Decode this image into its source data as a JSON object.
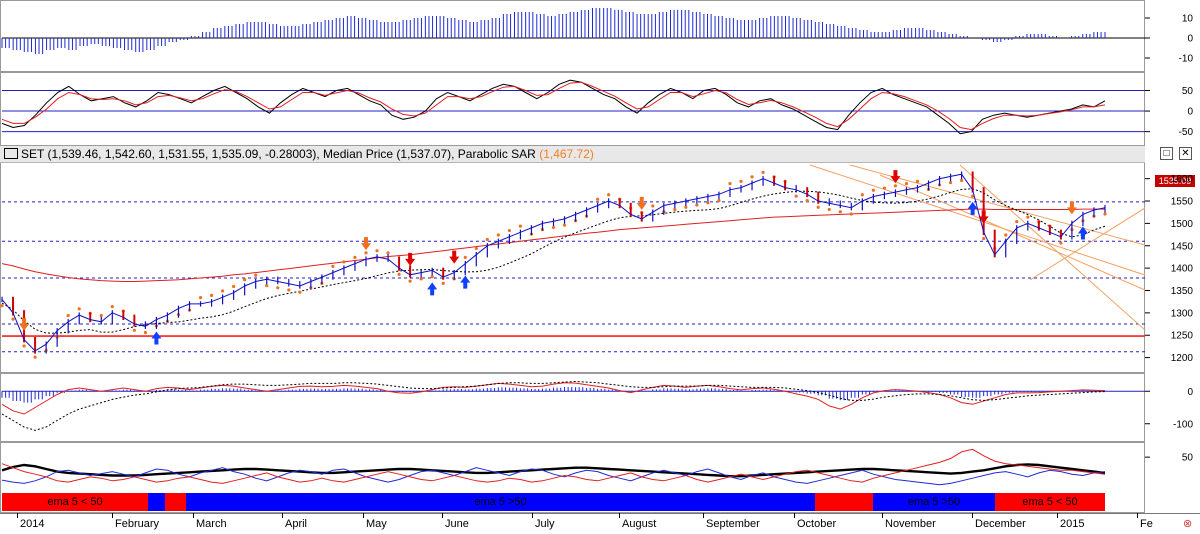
{
  "chart_data": [
    {
      "type": "bar",
      "indicator_id": "histogram-top",
      "yticks": [
        10,
        0,
        -10
      ],
      "ylim": [
        -16,
        18
      ],
      "colors": {
        "bars": "#1f2ad6",
        "zero": "#000000"
      },
      "values": [
        -5,
        -6,
        -7,
        -8,
        -6,
        -5,
        -6,
        -4,
        -3,
        -4,
        -5,
        -6,
        -7,
        -6,
        -4,
        -2,
        -1,
        1,
        3,
        5,
        6,
        7,
        8,
        8,
        7,
        6,
        6,
        7,
        8,
        9,
        10,
        11,
        10,
        9,
        8,
        8,
        9,
        10,
        11,
        11,
        10,
        9,
        8,
        9,
        10,
        12,
        13,
        13,
        12,
        11,
        12,
        13,
        14,
        15,
        15,
        14,
        13,
        12,
        12,
        13,
        14,
        14,
        13,
        12,
        11,
        10,
        9,
        9,
        10,
        11,
        11,
        10,
        9,
        8,
        7,
        6,
        5,
        4,
        3,
        3,
        4,
        5,
        5,
        4,
        3,
        2,
        1,
        0,
        -1,
        -2,
        -1,
        1,
        2,
        2,
        1,
        0,
        1,
        2,
        3,
        3
      ]
    },
    {
      "type": "line",
      "indicator_id": "oscillator",
      "yticks": [
        50,
        0,
        -50
      ],
      "ylim": [
        -80,
        90
      ],
      "hlines": [
        50,
        0,
        -50
      ],
      "series": [
        {
          "color": "#000000",
          "values": [
            -30,
            -40,
            -35,
            -10,
            20,
            45,
            60,
            40,
            25,
            30,
            35,
            20,
            10,
            25,
            45,
            40,
            30,
            20,
            35,
            50,
            60,
            45,
            30,
            10,
            -5,
            20,
            40,
            55,
            45,
            35,
            50,
            55,
            40,
            25,
            15,
            -10,
            -20,
            -15,
            0,
            30,
            45,
            35,
            25,
            40,
            55,
            65,
            60,
            45,
            30,
            45,
            65,
            75,
            70,
            55,
            40,
            30,
            10,
            -5,
            20,
            40,
            55,
            45,
            30,
            50,
            55,
            40,
            20,
            10,
            25,
            30,
            15,
            5,
            -10,
            -25,
            -40,
            -45,
            -10,
            20,
            45,
            55,
            40,
            30,
            20,
            10,
            -10,
            -30,
            -55,
            -50,
            -20,
            -10,
            -5,
            -10,
            -15,
            -10,
            -5,
            0,
            5,
            15,
            10,
            25
          ]
        },
        {
          "color": "#e02020",
          "values": [
            -20,
            -30,
            -30,
            -15,
            5,
            30,
            45,
            40,
            30,
            28,
            30,
            25,
            15,
            20,
            35,
            38,
            32,
            25,
            30,
            42,
            52,
            48,
            35,
            20,
            5,
            10,
            28,
            45,
            45,
            38,
            44,
            50,
            44,
            32,
            22,
            5,
            -8,
            -12,
            -5,
            15,
            35,
            35,
            30,
            35,
            47,
            58,
            60,
            50,
            38,
            40,
            55,
            68,
            70,
            60,
            48,
            36,
            20,
            5,
            10,
            28,
            45,
            45,
            35,
            42,
            50,
            44,
            28,
            16,
            20,
            26,
            20,
            10,
            -2,
            -15,
            -30,
            -38,
            -20,
            5,
            30,
            45,
            42,
            35,
            25,
            15,
            0,
            -18,
            -40,
            -45,
            -30,
            -18,
            -10,
            -10,
            -12,
            -10,
            -6,
            -2,
            3,
            10,
            10,
            15
          ]
        }
      ]
    },
    {
      "type": "line",
      "indicator_id": "SET",
      "title": "SET (1,539.46, 1,542.60, 1,531.55, 1,535.09, -0.28003), Median Price (1,537.07), Parabolic SAR (1,467.72)",
      "ohlc": {
        "open": "1,539.46",
        "high": "1,542.60",
        "low": "1,531.55",
        "close": "1,535.09",
        "change": "-0.28003"
      },
      "median_price": "1,537.07",
      "parabolic_sar": "1,467.72",
      "last_price_label": "1535.09",
      "yticks": [
        1600,
        1550,
        1500,
        1450,
        1400,
        1350,
        1300,
        1250,
        1200
      ],
      "ylim": [
        1170,
        1635
      ],
      "hlines_dashed": [
        1548,
        1460,
        1378,
        1275,
        1213
      ],
      "hline_solid": 1248,
      "colors": {
        "price": "#1010c0",
        "down": "#d00000",
        "sar": "#f07020",
        "ema_long": "#e02020",
        "ema_mid": "#000000",
        "support": "#ff2020"
      },
      "series": [
        {
          "name": "price",
          "values": [
            1330,
            1300,
            1240,
            1215,
            1230,
            1260,
            1280,
            1295,
            1285,
            1280,
            1300,
            1290,
            1275,
            1270,
            1285,
            1295,
            1310,
            1320,
            1320,
            1325,
            1335,
            1345,
            1360,
            1370,
            1375,
            1370,
            1365,
            1360,
            1370,
            1380,
            1390,
            1400,
            1410,
            1420,
            1425,
            1420,
            1400,
            1385,
            1390,
            1395,
            1380,
            1390,
            1410,
            1430,
            1450,
            1460,
            1470,
            1480,
            1490,
            1500,
            1505,
            1510,
            1520,
            1530,
            1540,
            1550,
            1540,
            1520,
            1510,
            1525,
            1540,
            1545,
            1550,
            1555,
            1560,
            1565,
            1575,
            1580,
            1590,
            1600,
            1590,
            1580,
            1575,
            1565,
            1550,
            1545,
            1540,
            1535,
            1550,
            1560,
            1565,
            1570,
            1575,
            1580,
            1590,
            1600,
            1605,
            1610,
            1575,
            1480,
            1430,
            1460,
            1490,
            1500,
            1490,
            1480,
            1470,
            1500,
            1520,
            1530,
            1535
          ]
        },
        {
          "name": "ema-200",
          "values": [
            1410,
            1405,
            1398,
            1392,
            1387,
            1383,
            1379,
            1376,
            1374,
            1372,
            1371,
            1370,
            1370,
            1371,
            1372,
            1373,
            1374,
            1376,
            1378,
            1380,
            1382,
            1385,
            1387,
            1390,
            1393,
            1396,
            1399,
            1402,
            1405,
            1408,
            1411,
            1414,
            1417,
            1420,
            1423,
            1426,
            1428,
            1430,
            1433,
            1436,
            1439,
            1442,
            1445,
            1448,
            1451,
            1454,
            1457,
            1460,
            1463,
            1466,
            1469,
            1472,
            1475,
            1478,
            1480,
            1483,
            1486,
            1488,
            1490,
            1492,
            1494,
            1496,
            1498,
            1500,
            1502,
            1504,
            1506,
            1508,
            1510,
            1512,
            1514,
            1515,
            1516,
            1517,
            1518,
            1519,
            1520,
            1521,
            1522,
            1523,
            1524,
            1525,
            1526,
            1527,
            1528,
            1529,
            1530,
            1531,
            1532,
            1532,
            1531,
            1531,
            1531,
            1531,
            1531,
            1531,
            1531,
            1531,
            1532,
            1532,
            1532
          ]
        }
      ]
    },
    {
      "type": "line",
      "indicator_id": "macd",
      "yticks": [
        0,
        -100
      ],
      "ylim": [
        -150,
        50
      ],
      "series": [
        {
          "color": "#1f2ad6",
          "values": [
            -40,
            -60,
            -70,
            -50,
            -30,
            -10,
            5,
            10,
            5,
            0,
            5,
            10,
            5,
            0,
            8,
            12,
            10,
            5,
            10,
            15,
            18,
            16,
            10,
            5,
            0,
            5,
            10,
            15,
            16,
            14,
            15,
            18,
            16,
            12,
            8,
            0,
            -5,
            -6,
            -2,
            5,
            12,
            14,
            12,
            16,
            20,
            24,
            22,
            18,
            14,
            16,
            22,
            26,
            25,
            20,
            15,
            10,
            2,
            -4,
            4,
            12,
            18,
            16,
            12,
            16,
            18,
            14,
            8,
            4,
            8,
            10,
            6,
            0,
            -8,
            -15,
            -25,
            -45,
            -55,
            -40,
            -20,
            -5,
            2,
            5,
            3,
            0,
            -4,
            -10,
            -20,
            -35,
            -40,
            -30,
            -20,
            -10,
            -5,
            -5,
            -4,
            -2,
            0,
            2,
            4,
            3,
            2
          ]
        },
        {
          "color": "#000000",
          "dashed": true,
          "values": [
            -70,
            -90,
            -110,
            -120,
            -110,
            -90,
            -70,
            -55,
            -45,
            -35,
            -25,
            -18,
            -12,
            -8,
            -2,
            4,
            8,
            10,
            12,
            16,
            20,
            22,
            22,
            20,
            18,
            18,
            20,
            22,
            24,
            24,
            24,
            26,
            26,
            24,
            22,
            18,
            14,
            10,
            8,
            8,
            10,
            12,
            14,
            16,
            20,
            24,
            26,
            26,
            24,
            24,
            26,
            28,
            30,
            28,
            26,
            22,
            18,
            14,
            12,
            12,
            14,
            16,
            16,
            16,
            18,
            18,
            16,
            14,
            12,
            12,
            12,
            10,
            6,
            2,
            -4,
            -12,
            -22,
            -28,
            -28,
            -24,
            -18,
            -14,
            -10,
            -8,
            -8,
            -10,
            -14,
            -20,
            -26,
            -28,
            -26,
            -22,
            -18,
            -14,
            -12,
            -10,
            -8,
            -6,
            -4,
            -2,
            -1
          ]
        }
      ]
    },
    {
      "type": "line",
      "indicator_id": "dmi",
      "yticks": [
        50
      ],
      "ylim": [
        0,
        70
      ],
      "series": [
        {
          "color": "#000000",
          "bold": true,
          "values": [
            30,
            35,
            38,
            36,
            32,
            28,
            26,
            25,
            24,
            23,
            22,
            22,
            22,
            23,
            24,
            25,
            26,
            27,
            28,
            29,
            30,
            31,
            32,
            32,
            31,
            30,
            29,
            28,
            27,
            26,
            26,
            27,
            28,
            29,
            30,
            31,
            32,
            32,
            31,
            30,
            29,
            28,
            27,
            26,
            26,
            27,
            28,
            29,
            30,
            31,
            32,
            33,
            34,
            34,
            33,
            32,
            31,
            30,
            29,
            28,
            27,
            26,
            25,
            24,
            23,
            22,
            21,
            21,
            22,
            23,
            24,
            25,
            26,
            27,
            28,
            29,
            30,
            31,
            32,
            32,
            31,
            30,
            29,
            28,
            27,
            26,
            25,
            26,
            28,
            30,
            33,
            36,
            38,
            39,
            38,
            36,
            34,
            32,
            30,
            28,
            26
          ]
        },
        {
          "color": "#1f2ad6",
          "values": [
            15,
            12,
            10,
            14,
            20,
            28,
            30,
            26,
            22,
            25,
            28,
            24,
            20,
            26,
            32,
            30,
            24,
            20,
            26,
            30,
            34,
            28,
            24,
            18,
            14,
            20,
            26,
            30,
            28,
            24,
            30,
            32,
            26,
            20,
            16,
            12,
            16,
            22,
            28,
            30,
            26,
            22,
            28,
            34,
            30,
            26,
            22,
            28,
            32,
            30,
            24,
            20,
            26,
            30,
            28,
            22,
            18,
            14,
            20,
            26,
            30,
            26,
            22,
            28,
            32,
            26,
            20,
            16,
            22,
            26,
            20,
            16,
            12,
            10,
            14,
            18,
            22,
            26,
            30,
            24,
            20,
            16,
            14,
            12,
            10,
            8,
            10,
            14,
            18,
            22,
            26,
            28,
            24,
            20,
            26,
            30,
            28,
            24,
            22,
            26,
            28
          ]
        },
        {
          "color": "#e02020",
          "values": [
            40,
            34,
            28,
            24,
            20,
            14,
            12,
            16,
            20,
            18,
            14,
            16,
            20,
            16,
            12,
            14,
            18,
            20,
            16,
            12,
            10,
            14,
            18,
            22,
            26,
            20,
            16,
            12,
            14,
            18,
            14,
            12,
            16,
            20,
            24,
            28,
            24,
            20,
            16,
            14,
            18,
            22,
            18,
            14,
            12,
            14,
            18,
            16,
            12,
            14,
            18,
            22,
            20,
            16,
            14,
            18,
            22,
            26,
            20,
            16,
            14,
            18,
            22,
            16,
            12,
            16,
            20,
            24,
            20,
            16,
            20,
            24,
            28,
            30,
            26,
            22,
            18,
            14,
            12,
            18,
            22,
            26,
            30,
            34,
            38,
            42,
            48,
            58,
            62,
            52,
            44,
            40,
            38,
            36,
            34,
            32,
            30,
            30,
            28,
            26,
            24
          ]
        }
      ]
    }
  ],
  "bands": [
    {
      "label": "ema 5 < 50",
      "color": "#ff0000"
    },
    {
      "label": "",
      "color": "#0000ff"
    },
    {
      "label": "",
      "color": "#ff0000"
    },
    {
      "label": "ema 5 >50",
      "color": "#0000ff"
    },
    {
      "label": "",
      "color": "#ff0000"
    },
    {
      "label": "ema 5 >50",
      "color": "#0000ff"
    },
    {
      "label": "ema 5 < 50",
      "color": "#ff0000"
    }
  ],
  "months": [
    "2014",
    "February",
    "March",
    "April",
    "May",
    "June",
    "July",
    "August",
    "September",
    "October",
    "November",
    "December",
    "2015",
    "Fe"
  ],
  "window_buttons": {
    "restore": "□",
    "close": "✕"
  },
  "status_icon": "⊗"
}
